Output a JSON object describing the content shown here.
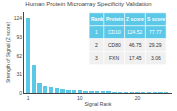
{
  "chart_data": {
    "type": "bar",
    "title": "Human Protein Microarray Specificity Validation",
    "xlabel": "Signal Rank",
    "ylabel": "Strength of Signal (Z score)",
    "x": [
      1,
      2,
      3,
      4,
      5,
      6,
      7,
      8,
      9,
      10,
      11,
      12,
      13,
      14,
      15,
      16,
      17,
      18,
      19,
      20,
      21,
      22,
      23,
      24,
      25
    ],
    "values": [
      124.52,
      46.75,
      17.45,
      12.0,
      9.5,
      7.8,
      6.5,
      5.5,
      4.8,
      4.2,
      3.8,
      3.5,
      3.2,
      2.9,
      2.7,
      2.5,
      2.35,
      2.2,
      2.1,
      2.0,
      1.9,
      1.8,
      1.7,
      1.65,
      1.55
    ],
    "color": "#5bc8e8",
    "xlim": [
      0.3,
      26
    ],
    "xticks": [
      1,
      10,
      20
    ],
    "ylim": [
      0,
      135
    ],
    "yticks": [
      0,
      31,
      62,
      93,
      124
    ],
    "grid": false,
    "table": {
      "headers": [
        "Rank",
        "Protein",
        "Z score",
        "S score"
      ],
      "rows": [
        [
          "1",
          "CD10",
          "124.52",
          "77.77"
        ],
        [
          "2",
          "CD80",
          "46.75",
          "29.29"
        ],
        [
          "3",
          "FXN",
          "17.45",
          "3.06"
        ]
      ],
      "colors": [
        "#5bc8e8",
        "#5bc8e8",
        "#f0f0f0",
        "#f0f0f0"
      ]
    }
  }
}
